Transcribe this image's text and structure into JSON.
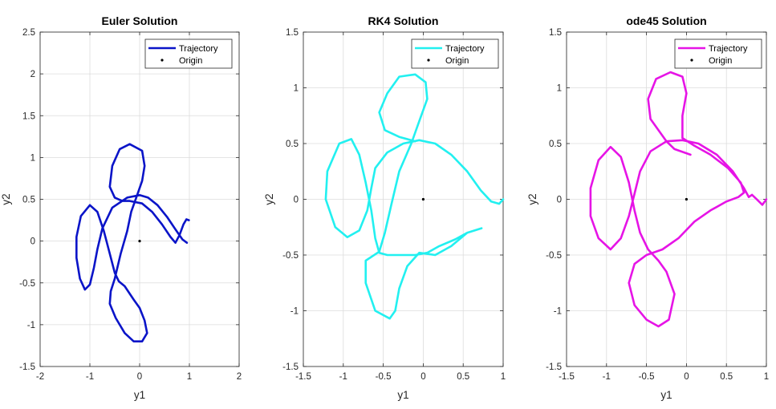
{
  "figure": {
    "background": "#ffffff",
    "grid_color": "#dcdcdc",
    "axis_color": "#262626"
  },
  "chart_data": [
    {
      "type": "line",
      "title": "Euler Solution",
      "xlabel": "y1",
      "ylabel": "y2",
      "xlim": [
        -2,
        2
      ],
      "ylim": [
        -1.5,
        2.5
      ],
      "xticks": [
        -2,
        -1,
        0,
        1,
        2
      ],
      "xtick_labels": [
        "-2",
        "-1",
        "0",
        "1",
        "2"
      ],
      "yticks": [
        -1.5,
        -1,
        -0.5,
        0,
        0.5,
        1,
        1.5,
        2,
        2.5
      ],
      "ytick_labels": [
        "-1.5",
        "-1",
        "-0.5",
        "0",
        "0.5",
        "1",
        "1.5",
        "2",
        "2.5"
      ],
      "grid": true,
      "legend_position": "top-right",
      "series": [
        {
          "name": "Trajectory",
          "color": "#0a14c8",
          "points": [
            [
              0.95,
              -0.02
            ],
            [
              0.86,
              0.02
            ],
            [
              0.72,
              0.14
            ],
            [
              0.55,
              0.29
            ],
            [
              0.36,
              0.43
            ],
            [
              0.17,
              0.52
            ],
            [
              0.0,
              0.55
            ],
            [
              -0.25,
              0.52
            ],
            [
              -0.55,
              0.4
            ],
            [
              -0.75,
              0.15
            ],
            [
              -0.85,
              -0.1
            ],
            [
              -0.92,
              -0.32
            ],
            [
              -1.0,
              -0.52
            ],
            [
              -1.1,
              -0.58
            ],
            [
              -1.2,
              -0.45
            ],
            [
              -1.27,
              -0.2
            ],
            [
              -1.27,
              0.05
            ],
            [
              -1.18,
              0.3
            ],
            [
              -1.0,
              0.43
            ],
            [
              -0.85,
              0.35
            ],
            [
              -0.72,
              0.12
            ],
            [
              -0.6,
              -0.15
            ],
            [
              -0.5,
              -0.38
            ],
            [
              -0.42,
              -0.48
            ],
            [
              -0.3,
              -0.54
            ],
            [
              -0.12,
              -0.7
            ],
            [
              0.0,
              -0.8
            ],
            [
              0.1,
              -0.95
            ],
            [
              0.15,
              -1.1
            ],
            [
              0.05,
              -1.2
            ],
            [
              -0.12,
              -1.2
            ],
            [
              -0.3,
              -1.1
            ],
            [
              -0.48,
              -0.92
            ],
            [
              -0.6,
              -0.75
            ],
            [
              -0.58,
              -0.6
            ],
            [
              -0.5,
              -0.45
            ],
            [
              -0.38,
              -0.15
            ],
            [
              -0.25,
              0.12
            ],
            [
              -0.17,
              0.35
            ],
            [
              -0.05,
              0.55
            ],
            [
              0.05,
              0.72
            ],
            [
              0.1,
              0.9
            ],
            [
              0.05,
              1.08
            ],
            [
              -0.2,
              1.16
            ],
            [
              -0.4,
              1.1
            ],
            [
              -0.55,
              0.9
            ],
            [
              -0.6,
              0.65
            ],
            [
              -0.5,
              0.52
            ],
            [
              -0.35,
              0.48
            ],
            [
              -0.2,
              0.48
            ],
            [
              0.05,
              0.45
            ],
            [
              0.25,
              0.35
            ],
            [
              0.45,
              0.2
            ],
            [
              0.62,
              0.05
            ],
            [
              0.72,
              -0.02
            ],
            [
              0.8,
              0.07
            ],
            [
              0.88,
              0.2
            ],
            [
              0.94,
              0.26
            ],
            [
              0.99,
              0.25
            ]
          ]
        },
        {
          "name": "Origin",
          "marker": "point",
          "color": "#000000",
          "points": [
            [
              0,
              0
            ]
          ]
        }
      ]
    },
    {
      "type": "line",
      "title": "RK4 Solution",
      "xlabel": "y1",
      "ylabel": "y2",
      "xlim": [
        -1.5,
        1
      ],
      "ylim": [
        -1.5,
        1.5
      ],
      "xticks": [
        -1.5,
        -1,
        -0.5,
        0,
        0.5,
        1
      ],
      "xtick_labels": [
        "-1.5",
        "-1",
        "-0.5",
        "0",
        "0.5",
        "1"
      ],
      "yticks": [
        -1.5,
        -1,
        -0.5,
        0,
        0.5,
        1,
        1.5
      ],
      "ytick_labels": [
        "-1.5",
        "-1",
        "-0.5",
        "0",
        "0.5",
        "1",
        "1.5"
      ],
      "grid": true,
      "legend_position": "top-right",
      "series": [
        {
          "name": "Trajectory",
          "color": "#22f0f0",
          "points": [
            [
              1.0,
              0.0
            ],
            [
              0.95,
              -0.04
            ],
            [
              0.85,
              -0.02
            ],
            [
              0.72,
              0.08
            ],
            [
              0.55,
              0.25
            ],
            [
              0.35,
              0.4
            ],
            [
              0.15,
              0.5
            ],
            [
              -0.05,
              0.53
            ],
            [
              -0.25,
              0.5
            ],
            [
              -0.45,
              0.42
            ],
            [
              -0.6,
              0.28
            ],
            [
              -0.65,
              0.1
            ],
            [
              -0.7,
              -0.1
            ],
            [
              -0.8,
              -0.28
            ],
            [
              -0.95,
              -0.34
            ],
            [
              -1.1,
              -0.25
            ],
            [
              -1.22,
              0.0
            ],
            [
              -1.2,
              0.25
            ],
            [
              -1.05,
              0.5
            ],
            [
              -0.9,
              0.54
            ],
            [
              -0.8,
              0.4
            ],
            [
              -0.72,
              0.15
            ],
            [
              -0.65,
              -0.1
            ],
            [
              -0.6,
              -0.35
            ],
            [
              -0.55,
              -0.48
            ],
            [
              -0.45,
              -0.5
            ],
            [
              -0.25,
              -0.5
            ],
            [
              -0.1,
              -0.5
            ],
            [
              0.05,
              -0.48
            ],
            [
              0.2,
              -0.42
            ],
            [
              0.4,
              -0.36
            ],
            [
              0.55,
              -0.3
            ],
            [
              0.73,
              -0.26
            ],
            [
              0.55,
              -0.3
            ],
            [
              0.35,
              -0.42
            ],
            [
              0.15,
              -0.5
            ],
            [
              -0.05,
              -0.48
            ],
            [
              -0.2,
              -0.6
            ],
            [
              -0.3,
              -0.8
            ],
            [
              -0.35,
              -1.0
            ],
            [
              -0.42,
              -1.07
            ],
            [
              -0.6,
              -1.0
            ],
            [
              -0.72,
              -0.75
            ],
            [
              -0.72,
              -0.55
            ],
            [
              -0.55,
              -0.47
            ],
            [
              -0.48,
              -0.3
            ],
            [
              -0.4,
              -0.05
            ],
            [
              -0.3,
              0.25
            ],
            [
              -0.15,
              0.5
            ],
            [
              -0.05,
              0.7
            ],
            [
              0.05,
              0.9
            ],
            [
              0.03,
              1.05
            ],
            [
              -0.1,
              1.12
            ],
            [
              -0.3,
              1.1
            ],
            [
              -0.45,
              0.95
            ],
            [
              -0.55,
              0.78
            ],
            [
              -0.48,
              0.62
            ],
            [
              -0.3,
              0.56
            ],
            [
              -0.1,
              0.52
            ]
          ]
        },
        {
          "name": "Origin",
          "marker": "point",
          "color": "#000000",
          "points": [
            [
              0,
              0
            ]
          ]
        }
      ]
    },
    {
      "type": "line",
      "title": "ode45 Solution",
      "xlabel": "y1",
      "ylabel": "y2",
      "xlim": [
        -1.5,
        1
      ],
      "ylim": [
        -1.5,
        1.5
      ],
      "xticks": [
        -1.5,
        -1,
        -0.5,
        0,
        0.5,
        1
      ],
      "xtick_labels": [
        "-1.5",
        "-1",
        "-0.5",
        "0",
        "0.5",
        "1"
      ],
      "yticks": [
        -1.5,
        -1,
        -0.5,
        0,
        0.5,
        1,
        1.5
      ],
      "ytick_labels": [
        "-1.5",
        "-1",
        "-0.5",
        "0",
        "0.5",
        "1",
        "1.5"
      ],
      "grid": true,
      "legend_position": "top-right",
      "series": [
        {
          "name": "Trajectory",
          "color": "#e614e6",
          "points": [
            [
              1.0,
              0.0
            ],
            [
              0.95,
              -0.05
            ],
            [
              0.88,
              0.0
            ],
            [
              0.82,
              0.04
            ],
            [
              0.78,
              0.02
            ],
            [
              0.72,
              0.1
            ],
            [
              0.58,
              0.25
            ],
            [
              0.38,
              0.4
            ],
            [
              0.15,
              0.5
            ],
            [
              -0.05,
              0.53
            ],
            [
              -0.25,
              0.52
            ],
            [
              -0.45,
              0.43
            ],
            [
              -0.58,
              0.25
            ],
            [
              -0.65,
              0.05
            ],
            [
              -0.72,
              -0.15
            ],
            [
              -0.82,
              -0.35
            ],
            [
              -0.95,
              -0.45
            ],
            [
              -1.1,
              -0.35
            ],
            [
              -1.2,
              -0.15
            ],
            [
              -1.2,
              0.1
            ],
            [
              -1.1,
              0.35
            ],
            [
              -0.95,
              0.47
            ],
            [
              -0.82,
              0.38
            ],
            [
              -0.72,
              0.15
            ],
            [
              -0.65,
              -0.1
            ],
            [
              -0.58,
              -0.3
            ],
            [
              -0.48,
              -0.45
            ],
            [
              -0.35,
              -0.55
            ],
            [
              -0.25,
              -0.65
            ],
            [
              -0.15,
              -0.85
            ],
            [
              -0.22,
              -1.08
            ],
            [
              -0.35,
              -1.14
            ],
            [
              -0.5,
              -1.08
            ],
            [
              -0.65,
              -0.95
            ],
            [
              -0.72,
              -0.75
            ],
            [
              -0.65,
              -0.58
            ],
            [
              -0.5,
              -0.5
            ],
            [
              -0.3,
              -0.45
            ],
            [
              -0.1,
              -0.35
            ],
            [
              0.1,
              -0.2
            ],
            [
              0.3,
              -0.1
            ],
            [
              0.5,
              -0.02
            ],
            [
              0.65,
              0.02
            ],
            [
              0.72,
              0.06
            ],
            [
              0.68,
              0.15
            ],
            [
              0.52,
              0.28
            ],
            [
              0.3,
              0.4
            ],
            [
              0.1,
              0.48
            ],
            [
              -0.05,
              0.55
            ],
            [
              -0.05,
              0.75
            ],
            [
              0.0,
              0.95
            ],
            [
              -0.05,
              1.1
            ],
            [
              -0.2,
              1.14
            ],
            [
              -0.38,
              1.08
            ],
            [
              -0.48,
              0.9
            ],
            [
              -0.45,
              0.72
            ],
            [
              -0.35,
              0.62
            ],
            [
              -0.25,
              0.52
            ],
            [
              -0.15,
              0.45
            ],
            [
              0.05,
              0.4
            ]
          ]
        },
        {
          "name": "Origin",
          "marker": "point",
          "color": "#000000",
          "points": [
            [
              0,
              0
            ]
          ]
        }
      ]
    }
  ]
}
